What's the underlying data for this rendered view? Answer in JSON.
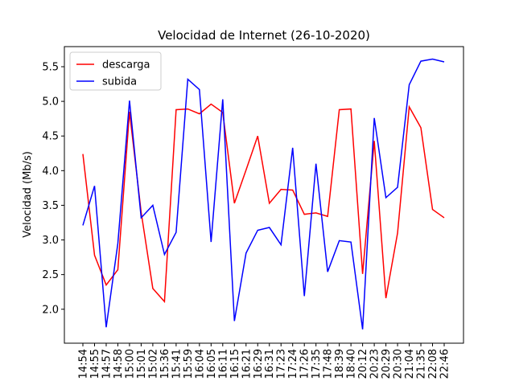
{
  "chart_data": {
    "type": "line",
    "title": "Velocidad de Internet (26-10-2020)",
    "y_label": "Velocidad (Mb/s)",
    "categories": [
      "14:54",
      "14:55",
      "14:57",
      "14:58",
      "15:00",
      "15:01",
      "15:02",
      "15:36",
      "15:41",
      "15:59",
      "16:04",
      "16:05",
      "16:11",
      "16:15",
      "16:21",
      "16:29",
      "16:31",
      "17:23",
      "17:24",
      "17:26",
      "17:35",
      "17:48",
      "18:39",
      "18:40",
      "20:12",
      "20:23",
      "20:29",
      "20:30",
      "21:04",
      "21:35",
      "22:08",
      "22:46"
    ],
    "series": [
      {
        "name": "descarga",
        "color": "#ff0000",
        "values": [
          4.24,
          2.78,
          2.35,
          2.57,
          4.85,
          3.4,
          2.3,
          2.11,
          4.88,
          4.89,
          4.82,
          4.96,
          4.84,
          3.53,
          4.01,
          4.5,
          3.53,
          3.73,
          3.72,
          3.37,
          3.39,
          3.34,
          4.88,
          4.89,
          2.51,
          4.43,
          2.16,
          3.1,
          4.92,
          4.62,
          3.44,
          3.32
        ]
      },
      {
        "name": "subida",
        "color": "#0000ff",
        "values": [
          3.21,
          3.78,
          1.74,
          2.95,
          5.01,
          3.32,
          3.5,
          2.79,
          3.11,
          5.32,
          5.17,
          2.97,
          5.03,
          1.83,
          2.81,
          3.14,
          3.18,
          2.93,
          4.33,
          2.19,
          4.1,
          2.54,
          2.99,
          2.97,
          1.71,
          4.76,
          3.61,
          3.76,
          5.24,
          5.58,
          5.61,
          5.57
        ]
      }
    ],
    "ylim": [
      1.51,
      5.79
    ],
    "yticks": [
      {
        "value": 2,
        "label": "2.0"
      },
      2.5,
      {
        "value": 3,
        "label": "3.0"
      },
      3.5,
      {
        "value": 4,
        "label": "4.0"
      },
      4.5,
      {
        "value": 5,
        "label": "5.0"
      },
      5.5
    ],
    "legend": "upper left"
  }
}
